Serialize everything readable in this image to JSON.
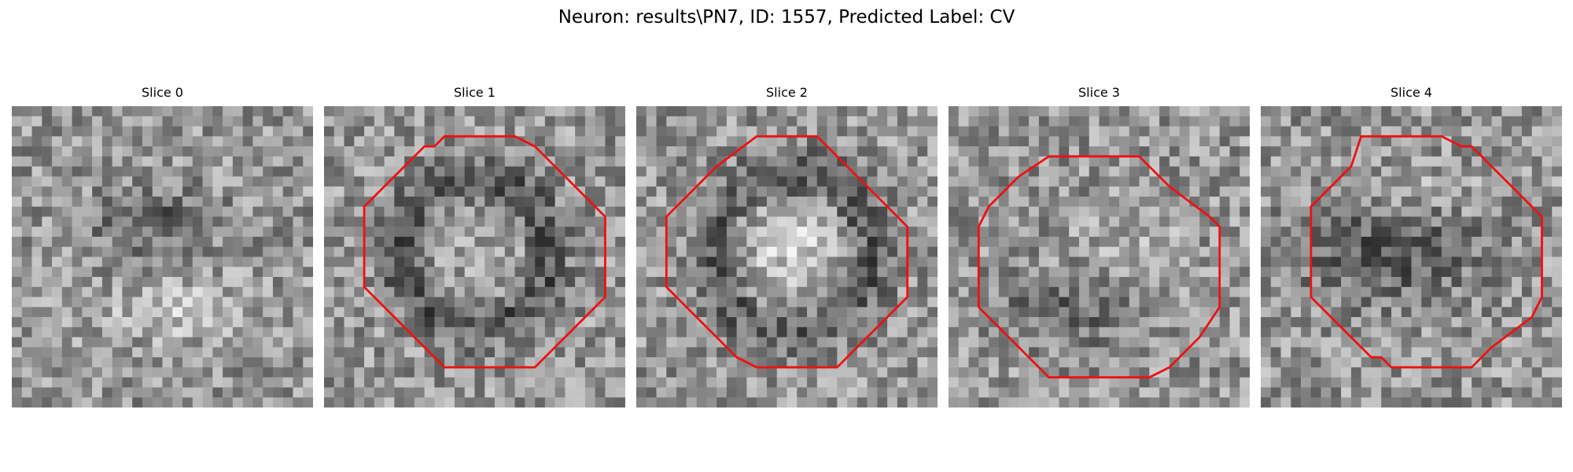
{
  "figure": {
    "suptitle": "Neuron: results\\PN7, ID: 1557, Predicted Label: CV"
  },
  "panels": [
    {
      "title": "Slice 0",
      "has_contour": false
    },
    {
      "title": "Slice 1",
      "has_contour": true
    },
    {
      "title": "Slice 2",
      "has_contour": true
    },
    {
      "title": "Slice 3",
      "has_contour": true
    },
    {
      "title": "Slice 4",
      "has_contour": true
    }
  ],
  "colors": {
    "contour": "#ee1111"
  }
}
